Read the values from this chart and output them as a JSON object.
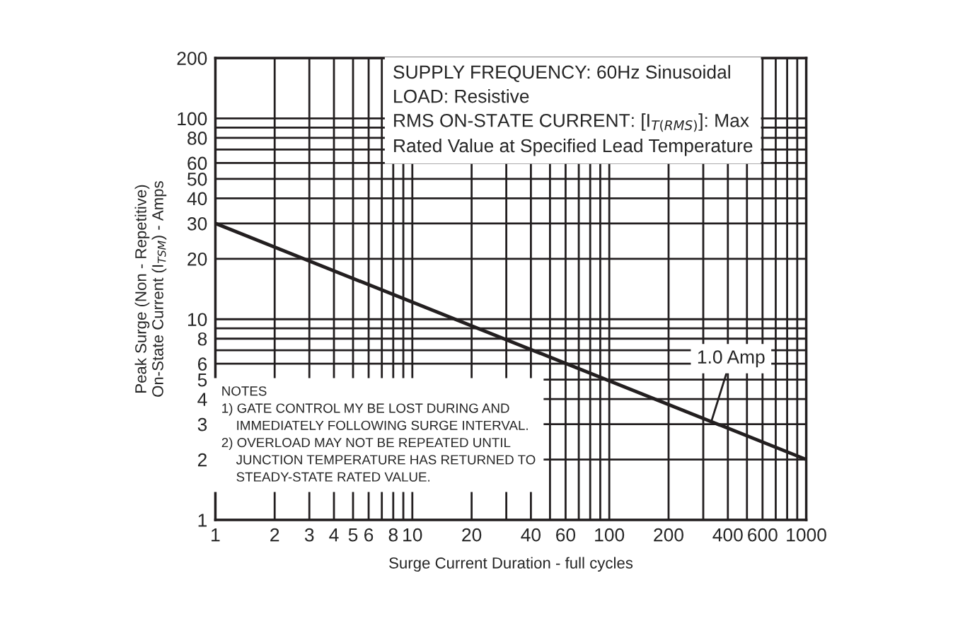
{
  "chart_data": {
    "type": "line",
    "xlabel": "Surge Current Duration - full cycles",
    "ylabel": "Peak Surge (Non - Repetitive)\nOn-State Current (I$_{TSM}$) - Amps",
    "series": [
      {
        "color": "#231f20",
        "x": [
          1,
          1000
        ],
        "values": [
          30,
          2
        ]
      }
    ],
    "log": "xy",
    "xlim": [
      1,
      1000
    ],
    "xticks": [
      1,
      2,
      3,
      4,
      5,
      6,
      {
        "value": 7,
        "label": null
      },
      8,
      {
        "value": 9,
        "label": null
      },
      10,
      20,
      {
        "value": 30,
        "label": null
      },
      40,
      {
        "value": 50,
        "label": null
      },
      60,
      {
        "value": 70,
        "label": null
      },
      {
        "value": 80,
        "label": null
      },
      {
        "value": 90,
        "label": null
      },
      100,
      200,
      {
        "value": 300,
        "label": null
      },
      400,
      {
        "value": 500,
        "label": null
      },
      600,
      {
        "value": 700,
        "label": null
      },
      {
        "value": 800,
        "label": null
      },
      {
        "value": 900,
        "label": null
      },
      1000
    ],
    "ylim": [
      1,
      200
    ],
    "yticks": [
      1,
      2,
      3,
      4,
      5,
      6,
      {
        "value": 7,
        "label": null
      },
      8,
      {
        "value": 9,
        "label": null
      },
      10,
      20,
      30,
      40,
      50,
      60,
      {
        "value": 70,
        "label": null
      },
      80,
      {
        "value": 90,
        "label": null
      },
      100,
      200
    ],
    "grid": true,
    "annotations": [
      "SUPPLY FREQUENCY: 60Hz Sinusoidal\nLOAD: Resistive\nRMS ON-STATE CURRENT: [I$_{T(RMS)}$]: Max\nRated Value at Specified Lead Temperature",
      "NOTES\n1) GATE CONTROL MY BE LOST DURING AND\n    IMMEDIATELY FOLLOWING SURGE INTERVAL.\n2) OVERLOAD MAY NOT BE REPEATED UNTIL\n    JUNCTION TEMPERATURE HAS RETURNED TO\n    STEADY-STATE RATED VALUE.",
      {
        "text": "1.0 Amp",
        "x": 330,
        "y": 3.1
      }
    ]
  }
}
